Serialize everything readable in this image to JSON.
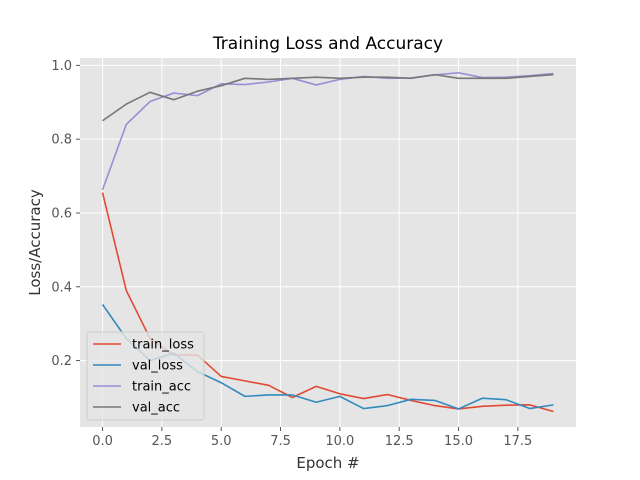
{
  "chart_data": {
    "type": "line",
    "title": "Training Loss and Accuracy",
    "xlabel": "Epoch #",
    "ylabel": "Loss/Accuracy",
    "xlim": [
      -0.95,
      19.95
    ],
    "ylim": [
      0.02,
      1.02
    ],
    "x_ticks": [
      0,
      2.5,
      5,
      7.5,
      10,
      12.5,
      15,
      17.5
    ],
    "x_tick_labels": [
      "0.0",
      "2.5",
      "5.0",
      "7.5",
      "10.0",
      "12.5",
      "15.0",
      "17.5"
    ],
    "y_ticks": [
      0.2,
      0.4,
      0.6,
      0.8,
      1.0
    ],
    "y_tick_labels": [
      "0.2",
      "0.4",
      "0.6",
      "0.8",
      "1.0"
    ],
    "grid": true,
    "legend_position": "lower-left",
    "x": [
      0,
      1,
      2,
      3,
      4,
      5,
      6,
      7,
      8,
      9,
      10,
      11,
      12,
      13,
      14,
      15,
      16,
      17,
      18,
      19
    ],
    "series": [
      {
        "name": "train_loss",
        "color": "#E24A33",
        "values": [
          0.655,
          0.39,
          0.26,
          0.215,
          0.215,
          0.157,
          0.145,
          0.133,
          0.1,
          0.13,
          0.11,
          0.097,
          0.108,
          0.092,
          0.078,
          0.069,
          0.076,
          0.079,
          0.08,
          0.062
        ]
      },
      {
        "name": "val_loss",
        "color": "#348ABD",
        "values": [
          0.352,
          0.26,
          0.2,
          0.22,
          0.17,
          0.14,
          0.103,
          0.107,
          0.107,
          0.087,
          0.103,
          0.07,
          0.078,
          0.095,
          0.092,
          0.069,
          0.098,
          0.094,
          0.07,
          0.08
        ]
      },
      {
        "name": "train_acc",
        "color": "#988ED5",
        "values": [
          0.663,
          0.84,
          0.902,
          0.925,
          0.918,
          0.95,
          0.948,
          0.955,
          0.965,
          0.947,
          0.962,
          0.97,
          0.965,
          0.966,
          0.974,
          0.98,
          0.967,
          0.968,
          0.972,
          0.978
        ]
      },
      {
        "name": "val_acc",
        "color": "#777777",
        "values": [
          0.85,
          0.895,
          0.927,
          0.907,
          0.93,
          0.945,
          0.965,
          0.962,
          0.965,
          0.968,
          0.965,
          0.968,
          0.968,
          0.965,
          0.975,
          0.965,
          0.965,
          0.965,
          0.97,
          0.975
        ]
      }
    ]
  }
}
